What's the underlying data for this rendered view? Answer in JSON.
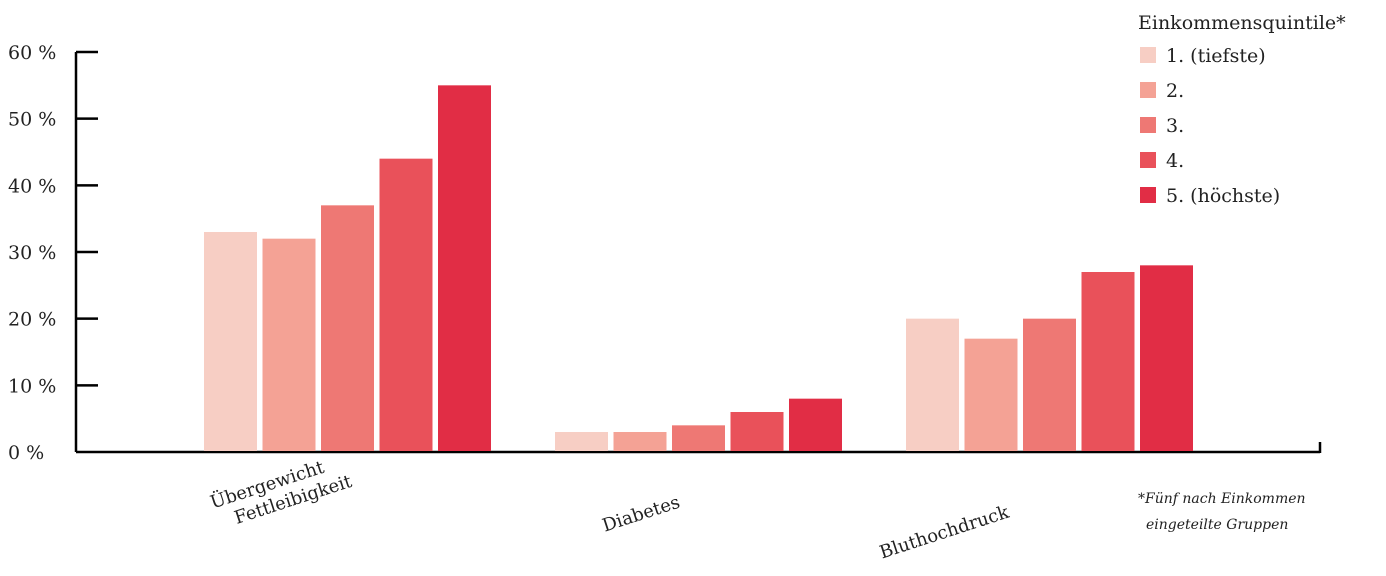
{
  "chart_data": {
    "type": "bar",
    "categories": [
      [
        "Übergewicht",
        "Fettleibigkeit"
      ],
      [
        "Diabetes"
      ],
      [
        "Bluthochdruck"
      ]
    ],
    "series": [
      {
        "name": "1. (tiefste)",
        "color": "#f7cec4",
        "values": [
          33,
          3,
          20
        ]
      },
      {
        "name": "2.",
        "color": "#f4a295",
        "values": [
          32,
          3,
          17
        ]
      },
      {
        "name": "3.",
        "color": "#ee7874",
        "values": [
          37,
          4,
          20
        ]
      },
      {
        "name": "4.",
        "color": "#e9515a",
        "values": [
          44,
          6,
          27
        ]
      },
      {
        "name": "5. (höchste)",
        "color": "#e12d45",
        "values": [
          55,
          8,
          28
        ]
      }
    ],
    "yticks": [
      0,
      10,
      20,
      30,
      40,
      50,
      60
    ],
    "ytick_labels": [
      "0 %",
      "10 %",
      "20 %",
      "30 %",
      "40 %",
      "50 %",
      "60 %"
    ],
    "ylim": [
      0,
      60
    ],
    "legend_title": "Einkommensquintile*",
    "legend_position": "top-right",
    "footnote": [
      "*Fünf nach Einkommen",
      "eingeteilte Gruppen"
    ],
    "grid": false
  }
}
